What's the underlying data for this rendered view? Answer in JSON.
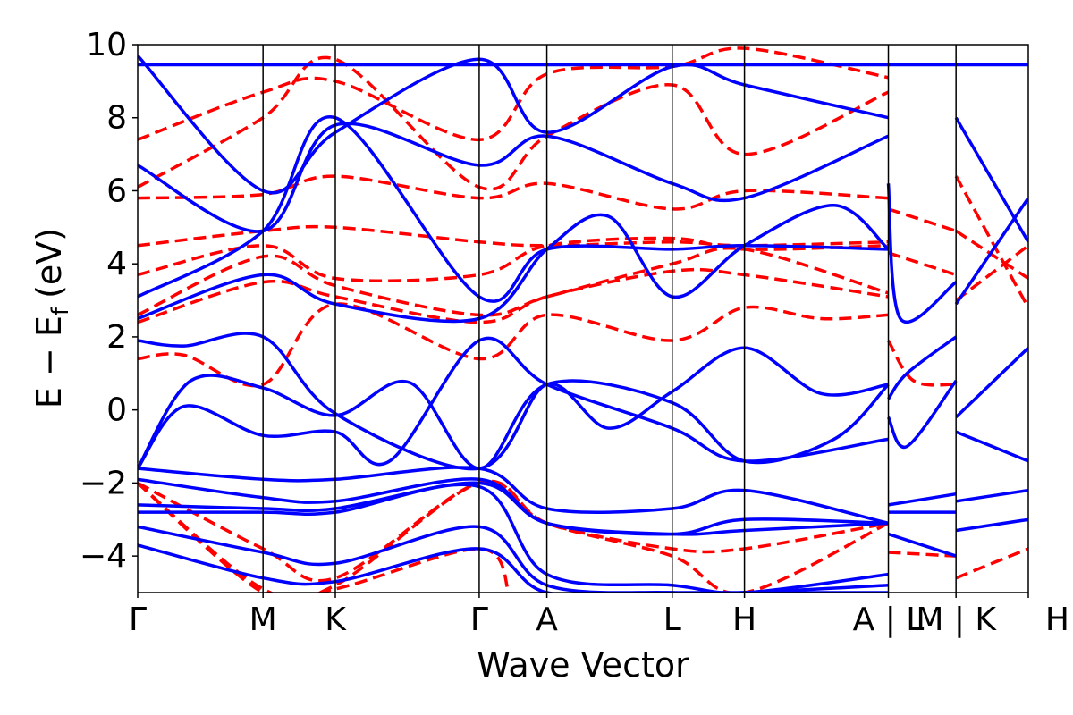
{
  "chart_data": {
    "type": "line",
    "xlabel": "Wave Vector",
    "ylabel": "E − E_f (eV)",
    "ylabel_parts": {
      "main": "E − E",
      "sub": "f",
      "unit": "(eV)"
    },
    "ylim": [
      -5,
      10
    ],
    "yticks": [
      10,
      8,
      6,
      4,
      2,
      0,
      -2,
      -4
    ],
    "ytick_labels": [
      "10",
      "8",
      "6",
      "4",
      "2",
      "0",
      "−2",
      "−4"
    ],
    "grid": false,
    "xlim": [
      0,
      13.43
    ],
    "kpoints": [
      {
        "pos": 0.0,
        "label": "Γ"
      },
      {
        "pos": 1.89,
        "label": "M"
      },
      {
        "pos": 2.98,
        "label": "K"
      },
      {
        "pos": 5.15,
        "label": "Γ"
      },
      {
        "pos": 6.17,
        "label": "A"
      },
      {
        "pos": 8.06,
        "label": "L"
      },
      {
        "pos": 9.15,
        "label": "H"
      },
      {
        "pos": 11.32,
        "label": "A | L"
      },
      {
        "pos": 12.34,
        "label": "M | K"
      },
      {
        "pos": 13.43,
        "label": "H"
      }
    ],
    "series": [
      {
        "style": "solid",
        "color": "#0000ff",
        "bands": [
          {
            "x": [
              0,
              1.89,
              2.98,
              5.15,
              6.17,
              8.06,
              9.15,
              11.32
            ],
            "y": [
              -1.6,
              -1.9,
              -1.9,
              -1.6,
              -2.7,
              -2.7,
              -2.2,
              -3.1
            ]
          },
          {
            "x": [
              0,
              1.89,
              2.98,
              5.15,
              6.17,
              8.06,
              9.15,
              11.32
            ],
            "y": [
              -1.9,
              -2.4,
              -2.5,
              -1.9,
              -3.1,
              -3.4,
              -3.0,
              -3.1
            ]
          },
          {
            "x": [
              0,
              1.89,
              2.98,
              5.15,
              6.17,
              8.06,
              9.15,
              11.32
            ],
            "y": [
              -2.6,
              -2.7,
              -2.7,
              -2.0,
              -3.1,
              -3.4,
              -3.3,
              -3.1
            ]
          },
          {
            "x": [
              0,
              1.89,
              2.98,
              5.15,
              6.17,
              8.06,
              9.15,
              11.32
            ],
            "y": [
              -2.8,
              -2.8,
              -2.8,
              -2.1,
              -4.5,
              -4.8,
              -5.0,
              -4.5
            ]
          },
          {
            "x": [
              0,
              1.89,
              2.98,
              5.15,
              6.17,
              8.06,
              9.15,
              11.32
            ],
            "y": [
              -3.2,
              -3.9,
              -4.2,
              -3.2,
              -4.8,
              -5.0,
              -5.0,
              -4.8
            ]
          },
          {
            "x": [
              0,
              1.89,
              2.98,
              5.15,
              6.17,
              8.06,
              9.15,
              11.32
            ],
            "y": [
              -3.7,
              -4.6,
              -4.7,
              -3.8,
              -5.0,
              -5.0,
              -5.0,
              -5.0
            ]
          },
          {
            "x": [
              0,
              0.7,
              1.89,
              2.98,
              5.15,
              6.17,
              7.1,
              8.06,
              9.15,
              10.3,
              11.32
            ],
            "y": [
              1.9,
              1.75,
              2.0,
              -0.1,
              -1.6,
              0.7,
              -0.5,
              0.5,
              1.7,
              0.45,
              0.7
            ]
          },
          {
            "x": [
              0,
              0.8,
              1.89,
              2.98,
              4.1,
              5.15,
              6.17,
              8.06,
              9.15,
              10.5,
              11.32
            ],
            "y": [
              -1.6,
              0.8,
              0.6,
              -0.15,
              0.75,
              -1.6,
              0.7,
              0.2,
              -1.4,
              -0.8,
              0.7
            ]
          },
          {
            "x": [
              0,
              0.7,
              1.89,
              2.98,
              3.8,
              5.15,
              6.17,
              8.06,
              9.15,
              11.32
            ],
            "y": [
              -1.6,
              0.1,
              -0.7,
              -0.6,
              -1.4,
              1.9,
              0.7,
              -0.5,
              -1.4,
              -0.8
            ]
          },
          {
            "x": [
              0,
              1.89,
              2.98,
              5.15,
              6.17,
              7.1,
              8.06,
              9.15,
              10.5,
              11.32
            ],
            "y": [
              2.5,
              3.7,
              2.9,
              2.5,
              4.4,
              5.3,
              3.1,
              4.5,
              5.6,
              4.4
            ]
          },
          {
            "x": [
              0,
              1.89,
              2.98,
              5.15,
              6.17,
              8.06,
              9.15,
              11.32
            ],
            "y": [
              3.1,
              4.9,
              8.0,
              3.1,
              4.4,
              4.4,
              4.5,
              4.4
            ]
          },
          {
            "x": [
              0,
              1.89,
              2.98,
              5.15,
              6.17,
              8.06,
              9.15,
              11.32
            ],
            "y": [
              6.7,
              4.9,
              7.8,
              6.7,
              7.5,
              6.2,
              5.8,
              7.5
            ]
          },
          {
            "x": [
              0,
              1.89,
              2.98,
              5.15,
              6.17,
              8.06,
              9.15,
              11.32
            ],
            "y": [
              9.7,
              6.0,
              7.6,
              9.6,
              7.6,
              9.4,
              8.9,
              8.0
            ]
          },
          {
            "x": [
              0,
              13.43
            ],
            "y": [
              9.45,
              9.45
            ]
          },
          {
            "x": [
              11.32,
              11.5,
              12.34
            ],
            "y": [
              6.2,
              2.5,
              3.5
            ]
          },
          {
            "x": [
              11.32,
              11.6,
              12.34
            ],
            "y": [
              0.3,
              1.0,
              2.0
            ]
          },
          {
            "x": [
              11.32,
              11.6,
              12.34
            ],
            "y": [
              -0.2,
              -1.0,
              0.8
            ]
          },
          {
            "x": [
              11.32,
              12.34
            ],
            "y": [
              -2.6,
              -2.3
            ]
          },
          {
            "x": [
              11.32,
              12.34
            ],
            "y": [
              -3.4,
              -4.0
            ]
          },
          {
            "x": [
              11.32,
              12.34
            ],
            "y": [
              -2.8,
              -2.8
            ]
          },
          {
            "x": [
              12.34,
              13.43
            ],
            "y": [
              -0.2,
              1.7
            ]
          },
          {
            "x": [
              12.34,
              13.43
            ],
            "y": [
              -0.6,
              -1.4
            ]
          },
          {
            "x": [
              12.34,
              13.43
            ],
            "y": [
              2.9,
              5.8
            ]
          },
          {
            "x": [
              12.34,
              13.43
            ],
            "y": [
              8.0,
              4.6
            ]
          },
          {
            "x": [
              12.34,
              13.43
            ],
            "y": [
              -2.5,
              -2.2
            ]
          },
          {
            "x": [
              12.34,
              13.43
            ],
            "y": [
              -3.3,
              -3.0
            ]
          }
        ]
      },
      {
        "style": "dashed",
        "color": "#ff0000",
        "bands": [
          {
            "x": [
              0,
              0.7,
              1.89,
              2.98,
              5.15,
              6.17,
              8.06,
              9.15,
              10.3,
              11.32
            ],
            "y": [
              1.4,
              1.5,
              0.7,
              2.9,
              1.4,
              2.6,
              1.9,
              2.8,
              2.5,
              2.6
            ]
          },
          {
            "x": [
              0,
              1.89,
              2.98,
              5.15,
              6.17,
              8.06,
              9.15,
              11.32
            ],
            "y": [
              2.4,
              3.5,
              3.1,
              2.4,
              3.1,
              3.8,
              3.7,
              3.1
            ]
          },
          {
            "x": [
              0,
              1.89,
              2.98,
              5.15,
              6.17,
              8.06,
              9.15,
              11.32
            ],
            "y": [
              2.6,
              4.2,
              3.4,
              2.6,
              3.1,
              4.0,
              4.4,
              3.2
            ]
          },
          {
            "x": [
              0,
              1.89,
              2.98,
              5.15,
              6.17,
              8.06,
              9.15,
              11.32
            ],
            "y": [
              3.7,
              4.5,
              3.6,
              3.7,
              4.5,
              4.7,
              4.4,
              4.5
            ]
          },
          {
            "x": [
              0,
              1.89,
              2.98,
              5.15,
              6.17,
              8.06,
              9.15,
              11.32
            ],
            "y": [
              4.5,
              4.9,
              5.0,
              4.6,
              4.5,
              4.6,
              4.5,
              4.6
            ]
          },
          {
            "x": [
              0,
              1.89,
              2.98,
              5.15,
              6.17,
              8.06,
              9.15,
              11.32
            ],
            "y": [
              5.8,
              5.9,
              6.4,
              5.8,
              6.2,
              5.5,
              6.0,
              5.8
            ]
          },
          {
            "x": [
              0,
              1.89,
              2.98,
              5.15,
              6.17,
              8.06,
              9.15,
              11.32
            ],
            "y": [
              6.1,
              8.0,
              9.6,
              6.1,
              7.5,
              8.9,
              7.0,
              8.7
            ]
          },
          {
            "x": [
              0,
              1.89,
              2.98,
              5.15,
              6.17,
              8.06,
              9.15,
              11.32
            ],
            "y": [
              7.4,
              8.7,
              9.0,
              7.4,
              9.2,
              9.4,
              9.9,
              9.1
            ]
          },
          {
            "x": [
              0,
              1.89,
              2.98,
              5.15,
              6.17,
              8.06,
              9.15,
              11.32
            ],
            "y": [
              -2.0,
              -3.8,
              -4.6,
              -2.0,
              -3.1,
              -3.8,
              -3.8,
              -3.1
            ]
          },
          {
            "x": [
              0,
              1.89,
              2.98,
              5.15,
              6.17,
              8.06,
              9.15,
              11.32
            ],
            "y": [
              -2.0,
              -4.9,
              -4.8,
              -2.0,
              -3.1,
              -4.0,
              -5.0,
              -3.1
            ]
          },
          {
            "x": [
              0,
              1.89,
              2.98,
              5.15,
              5.6
            ],
            "y": [
              -2.0,
              -5.0,
              -4.9,
              -3.8,
              -5.0
            ]
          },
          {
            "x": [
              11.32,
              11.7,
              12.34
            ],
            "y": [
              1.9,
              0.8,
              0.7
            ]
          },
          {
            "x": [
              11.32,
              12.34
            ],
            "y": [
              -3.9,
              -4.0
            ]
          },
          {
            "x": [
              11.32,
              12.34
            ],
            "y": [
              5.5,
              4.9
            ]
          },
          {
            "x": [
              11.32,
              12.34
            ],
            "y": [
              4.3,
              3.7
            ]
          },
          {
            "x": [
              12.34,
              13.43
            ],
            "y": [
              -4.6,
              -3.8
            ]
          },
          {
            "x": [
              12.34,
              13.43
            ],
            "y": [
              3.0,
              4.5
            ]
          },
          {
            "x": [
              12.34,
              13.43
            ],
            "y": [
              6.4,
              2.8
            ]
          },
          {
            "x": [
              12.34,
              13.43
            ],
            "y": [
              4.9,
              3.6
            ]
          }
        ]
      }
    ]
  }
}
